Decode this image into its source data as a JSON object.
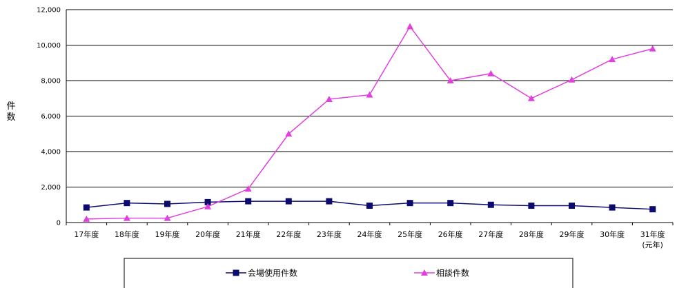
{
  "chart_data": {
    "type": "line",
    "categories": [
      "17年度",
      "18年度",
      "19年度",
      "20年度",
      "21年度",
      "22年度",
      "23年度",
      "24年度",
      "25年度",
      "26年度",
      "27年度",
      "28年度",
      "29年度",
      "30年度",
      "31年度"
    ],
    "category_sublabels": {
      "14": "(元年)"
    },
    "series": [
      {
        "name": "会場使用件数",
        "color": "#0b0b6e",
        "marker": "square",
        "values": [
          850,
          1100,
          1050,
          1150,
          1200,
          1200,
          1200,
          950,
          1100,
          1100,
          1000,
          950,
          950,
          850,
          750
        ]
      },
      {
        "name": "相談件数",
        "color": "#e040e0",
        "marker": "triangle",
        "values": [
          200,
          250,
          250,
          900,
          1900,
          5000,
          6950,
          7200,
          11050,
          8000,
          8400,
          7000,
          8050,
          9200,
          9800
        ]
      }
    ],
    "ylabel": "件数",
    "ylim": [
      0,
      12000
    ],
    "yticks": [
      "0",
      "2,000",
      "4,000",
      "6,000",
      "8,000",
      "10,000",
      "12,000"
    ],
    "grid": true,
    "legend_position": "bottom"
  }
}
